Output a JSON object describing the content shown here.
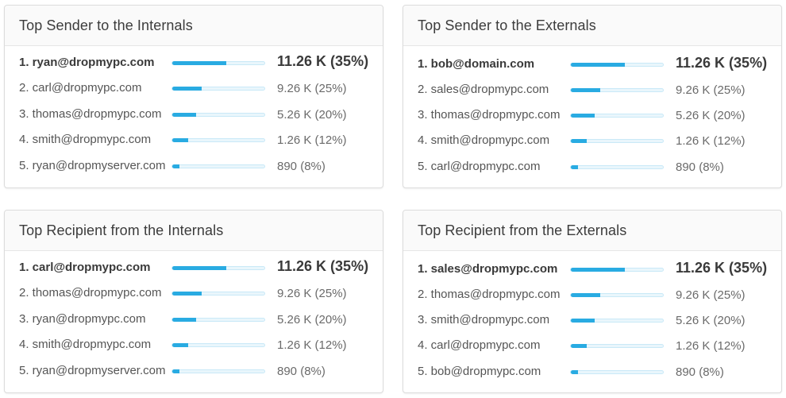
{
  "cards": [
    {
      "title": "Top Sender to the Internals",
      "rows": [
        {
          "email": "1. ryan@dropmypc.com",
          "value": "11.26 K (35%)",
          "bar": 0.58
        },
        {
          "email": "2. carl@dropmypc.com",
          "value": "9.26 K (25%)",
          "bar": 0.31
        },
        {
          "email": "3. thomas@dropmypc.com",
          "value": "5.26 K (20%)",
          "bar": 0.25
        },
        {
          "email": "4. smith@dropmypc.com",
          "value": "1.26 K (12%)",
          "bar": 0.17
        },
        {
          "email": "5. ryan@dropmyserver.com",
          "value": "890 (8%)",
          "bar": 0.08
        }
      ]
    },
    {
      "title": "Top Sender to the Externals",
      "rows": [
        {
          "email": "1. bob@domain.com",
          "value": "11.26 K (35%)",
          "bar": 0.58
        },
        {
          "email": "2. sales@dropmypc.com",
          "value": "9.26 K (25%)",
          "bar": 0.31
        },
        {
          "email": "3. thomas@dropmypc.com",
          "value": "5.26 K (20%)",
          "bar": 0.25
        },
        {
          "email": "4. smith@dropmypc.com",
          "value": "1.26 K (12%)",
          "bar": 0.17
        },
        {
          "email": "5. carl@dropmypc.com",
          "value": "890 (8%)",
          "bar": 0.08
        }
      ]
    },
    {
      "title": "Top Recipient from the Internals",
      "rows": [
        {
          "email": "1. carl@dropmypc.com",
          "value": "11.26 K (35%)",
          "bar": 0.58
        },
        {
          "email": "2. thomas@dropmypc.com",
          "value": "9.26 K (25%)",
          "bar": 0.31
        },
        {
          "email": "3. ryan@dropmypc.com",
          "value": "5.26 K (20%)",
          "bar": 0.25
        },
        {
          "email": "4. smith@dropmypc.com",
          "value": "1.26 K (12%)",
          "bar": 0.17
        },
        {
          "email": "5. ryan@dropmyserver.com",
          "value": "890 (8%)",
          "bar": 0.08
        }
      ]
    },
    {
      "title": "Top Recipient from the Externals",
      "rows": [
        {
          "email": "1. sales@dropmypc.com",
          "value": "11.26 K (35%)",
          "bar": 0.58
        },
        {
          "email": "2. thomas@dropmypc.com",
          "value": "9.26 K (25%)",
          "bar": 0.31
        },
        {
          "email": "3. smith@dropmypc.com",
          "value": "5.26 K (20%)",
          "bar": 0.25
        },
        {
          "email": "4. carl@dropmypc.com",
          "value": "1.26 K (12%)",
          "bar": 0.17
        },
        {
          "email": "5. bob@dropmypc.com",
          "value": "890 (8%)",
          "bar": 0.08
        }
      ]
    }
  ],
  "colors": {
    "bar_fill": "#29abe2",
    "bar_track": "#e9f6fc"
  }
}
